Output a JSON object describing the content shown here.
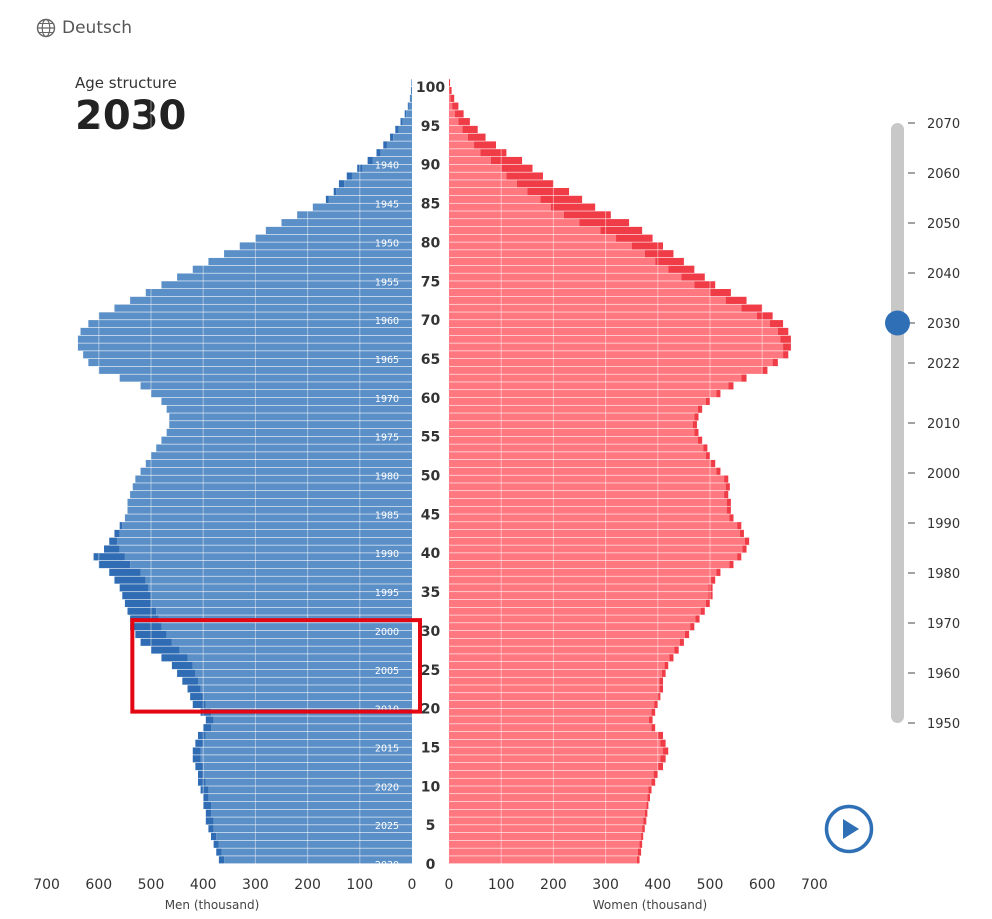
{
  "language": {
    "label": "Deutsch",
    "icon": "globe-icon"
  },
  "header": {
    "subtitle": "Age structure",
    "year": "2030"
  },
  "play_button": {
    "icon": "play-icon"
  },
  "colors": {
    "men": "#5b8fc7",
    "men_surplus": "#2f6cb3",
    "women": "#ff7880",
    "women_surplus": "#f03c46",
    "slider": "#2f6fb5",
    "highlight": "#e30613"
  },
  "slider": {
    "min": 1950,
    "max": 2070,
    "value": 2030,
    "ticks": [
      "2070",
      "2060",
      "2050",
      "2040",
      "2030",
      "2022",
      "2010",
      "2000",
      "1990",
      "1980",
      "1970",
      "1960",
      "1950"
    ]
  },
  "highlight": {
    "age_from": 20,
    "age_to": 30,
    "men_from": 0,
    "men_to": 530
  },
  "chart_data": {
    "type": "population_pyramid",
    "year": 2030,
    "xlabel_left": "Men (thousand)",
    "xlabel_right": "Women (thousand)",
    "x_ticks": [
      "700",
      "600",
      "500",
      "400",
      "300",
      "200",
      "100",
      "0"
    ],
    "x_ticks_right": [
      "0",
      "100",
      "200",
      "300",
      "400",
      "500",
      "600",
      "700"
    ],
    "xlim": [
      0,
      700
    ],
    "age_ticks": [
      "0",
      "5",
      "10",
      "15",
      "20",
      "25",
      "30",
      "35",
      "40",
      "45",
      "50",
      "55",
      "60",
      "65",
      "70",
      "75",
      "80",
      "85",
      "90",
      "95",
      "100"
    ],
    "birth_year_labels": [
      "2030",
      "2025",
      "2020",
      "2015",
      "2010",
      "2005",
      "2000",
      "1995",
      "1990",
      "1985",
      "1980",
      "1975",
      "1970",
      "1965",
      "1960",
      "1955",
      "1950",
      "1945",
      "1940"
    ],
    "men": [
      370,
      375,
      380,
      385,
      390,
      395,
      395,
      400,
      400,
      405,
      410,
      410,
      415,
      420,
      420,
      415,
      410,
      400,
      395,
      405,
      420,
      425,
      430,
      440,
      450,
      460,
      480,
      500,
      520,
      530,
      540,
      540,
      545,
      550,
      555,
      560,
      570,
      580,
      600,
      610,
      590,
      580,
      570,
      560,
      550,
      545,
      545,
      540,
      535,
      530,
      520,
      510,
      500,
      490,
      480,
      470,
      465,
      465,
      470,
      480,
      500,
      520,
      560,
      600,
      620,
      630,
      640,
      640,
      635,
      620,
      600,
      570,
      540,
      510,
      480,
      450,
      420,
      390,
      360,
      330,
      300,
      280,
      250,
      220,
      190,
      165,
      150,
      140,
      125,
      105,
      85,
      68,
      55,
      42,
      32,
      22,
      14,
      8,
      4,
      2,
      1
    ],
    "men_base": [
      360,
      365,
      370,
      375,
      380,
      380,
      385,
      385,
      390,
      390,
      395,
      400,
      400,
      405,
      405,
      400,
      395,
      385,
      380,
      385,
      395,
      400,
      405,
      410,
      415,
      420,
      430,
      445,
      460,
      470,
      480,
      485,
      490,
      500,
      500,
      505,
      510,
      520,
      540,
      550,
      560,
      565,
      560,
      555,
      550,
      545,
      545,
      540,
      535,
      530,
      520,
      510,
      500,
      490,
      480,
      470,
      465,
      465,
      470,
      480,
      500,
      520,
      560,
      600,
      620,
      630,
      640,
      640,
      635,
      620,
      600,
      570,
      540,
      510,
      480,
      450,
      420,
      390,
      360,
      330,
      300,
      280,
      250,
      220,
      190,
      160,
      145,
      130,
      115,
      95,
      75,
      60,
      48,
      36,
      26,
      18,
      11,
      6,
      3,
      1,
      0
    ],
    "women": [
      365,
      368,
      370,
      372,
      375,
      378,
      380,
      382,
      385,
      388,
      395,
      400,
      410,
      415,
      420,
      415,
      410,
      395,
      390,
      395,
      400,
      405,
      410,
      410,
      415,
      420,
      430,
      440,
      450,
      460,
      470,
      480,
      490,
      500,
      505,
      505,
      510,
      520,
      545,
      560,
      570,
      575,
      565,
      560,
      545,
      540,
      540,
      535,
      538,
      535,
      520,
      510,
      500,
      495,
      485,
      478,
      475,
      478,
      485,
      500,
      520,
      545,
      570,
      610,
      630,
      650,
      655,
      655,
      650,
      640,
      620,
      600,
      570,
      540,
      510,
      490,
      470,
      450,
      430,
      410,
      390,
      370,
      345,
      310,
      280,
      255,
      230,
      200,
      180,
      160,
      140,
      110,
      90,
      70,
      55,
      40,
      28,
      18,
      10,
      5,
      2
    ],
    "women_base": [
      360,
      362,
      365,
      368,
      370,
      372,
      375,
      378,
      380,
      382,
      388,
      392,
      400,
      405,
      410,
      405,
      400,
      388,
      383,
      388,
      393,
      398,
      403,
      403,
      408,
      413,
      422,
      432,
      442,
      452,
      462,
      472,
      482,
      492,
      497,
      497,
      502,
      512,
      537,
      552,
      562,
      567,
      557,
      552,
      537,
      532,
      532,
      527,
      530,
      527,
      512,
      502,
      492,
      487,
      477,
      470,
      467,
      470,
      477,
      492,
      512,
      535,
      560,
      600,
      620,
      640,
      640,
      635,
      630,
      615,
      590,
      560,
      530,
      500,
      470,
      445,
      420,
      395,
      375,
      350,
      320,
      290,
      250,
      220,
      195,
      175,
      150,
      130,
      110,
      100,
      80,
      60,
      48,
      36,
      26,
      18,
      11,
      6,
      3,
      1,
      0
    ]
  }
}
